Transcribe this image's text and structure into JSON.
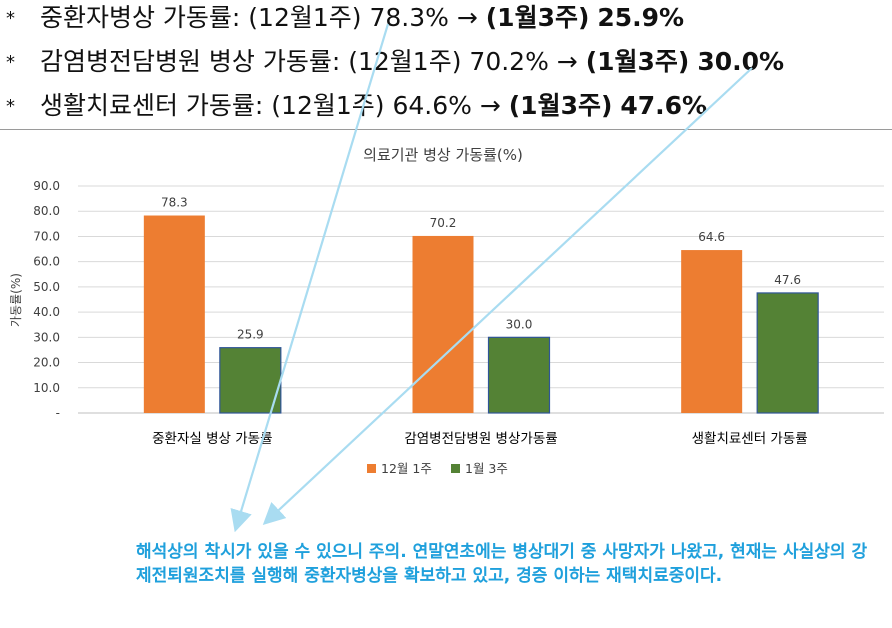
{
  "headlines": [
    {
      "bullet": "*",
      "label": "중환자병상 가동률:",
      "from_period": "(12월1주)",
      "from_value": "78.3%",
      "arrow": "→",
      "to_period": "(1월3주)",
      "to_value": "25.9%"
    },
    {
      "bullet": "*",
      "label": "감염병전담병원 병상 가동률:",
      "from_period": "(12월1주)",
      "from_value": "70.2%",
      "arrow": "→",
      "to_period": "(1월3주)",
      "to_value": "30.0%"
    },
    {
      "bullet": "*",
      "label": "생활치료센터 가동률:",
      "from_period": "(12월1주)",
      "from_value": "64.6%",
      "arrow": "→",
      "to_period": "(1월3주)",
      "to_value": "47.6%"
    }
  ],
  "chart_data": {
    "type": "bar",
    "title": "의료기관 병상 가동률(%)",
    "ylabel": "가동률(%)",
    "xlabel": "",
    "ylim": [
      0,
      90
    ],
    "yticks": [
      "-",
      "10.0",
      "20.0",
      "30.0",
      "40.0",
      "50.0",
      "60.0",
      "70.0",
      "80.0",
      "90.0"
    ],
    "grid": true,
    "legend_position": "bottom",
    "categories": [
      "중환자실 병상 가동률",
      "감염병전담병원 병상가동률",
      "생활치료센터 가동률"
    ],
    "series": [
      {
        "name": "12월 1주",
        "color": "#ed7d31",
        "values": [
          78.3,
          70.2,
          64.6
        ],
        "labels": [
          "78.3",
          "70.2",
          "64.6"
        ]
      },
      {
        "name": "1월 3주",
        "color": "#548235",
        "values": [
          25.9,
          30.0,
          47.6
        ],
        "labels": [
          "25.9",
          "30.0",
          "47.6"
        ]
      }
    ]
  },
  "annotation": {
    "text": "해석상의 착시가 있을 수 있으니 주의. 연말연초에는 병상대기 중 사망자가 나왔고, 현재는 사실상의 강제전퇴원조치를 실행해 중환자병상을 확보하고 있고, 경증 이하는 재택치료중이다.",
    "color": "#1fa0dc"
  }
}
